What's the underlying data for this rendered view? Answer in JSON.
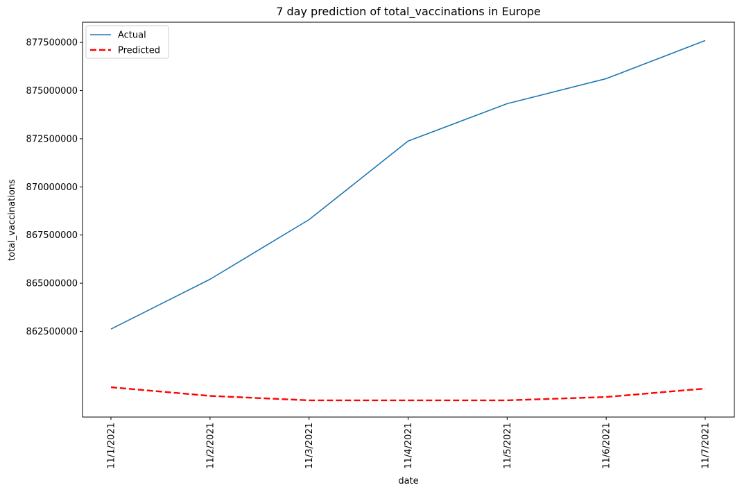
{
  "chart_data": {
    "type": "line",
    "title": "7 day prediction of total_vaccinations in Europe",
    "xlabel": "date",
    "ylabel": "total_vaccinations",
    "categories": [
      "11/1/2021",
      "11/2/2021",
      "11/3/2021",
      "11/4/2021",
      "11/5/2021",
      "11/6/2021",
      "11/7/2021"
    ],
    "ylim": [
      858050000,
      878550000
    ],
    "yticks": [
      862500000,
      865000000,
      867500000,
      870000000,
      872500000,
      875000000,
      877500000
    ],
    "ytick_labels": [
      "862500000",
      "865000000",
      "867500000",
      "870000000",
      "872500000",
      "875000000",
      "877500000"
    ],
    "grid": false,
    "legend": "upper-left",
    "series": [
      {
        "name": "Actual",
        "color": "#1f77b4",
        "style": "solid",
        "values": [
          862620000,
          865200000,
          868300000,
          872380000,
          874320000,
          875620000,
          877600000
        ]
      },
      {
        "name": "Predicted",
        "color": "#ff0000",
        "style": "dashed",
        "values": [
          859600000,
          859150000,
          858920000,
          858920000,
          858920000,
          859090000,
          859530000
        ]
      }
    ]
  }
}
